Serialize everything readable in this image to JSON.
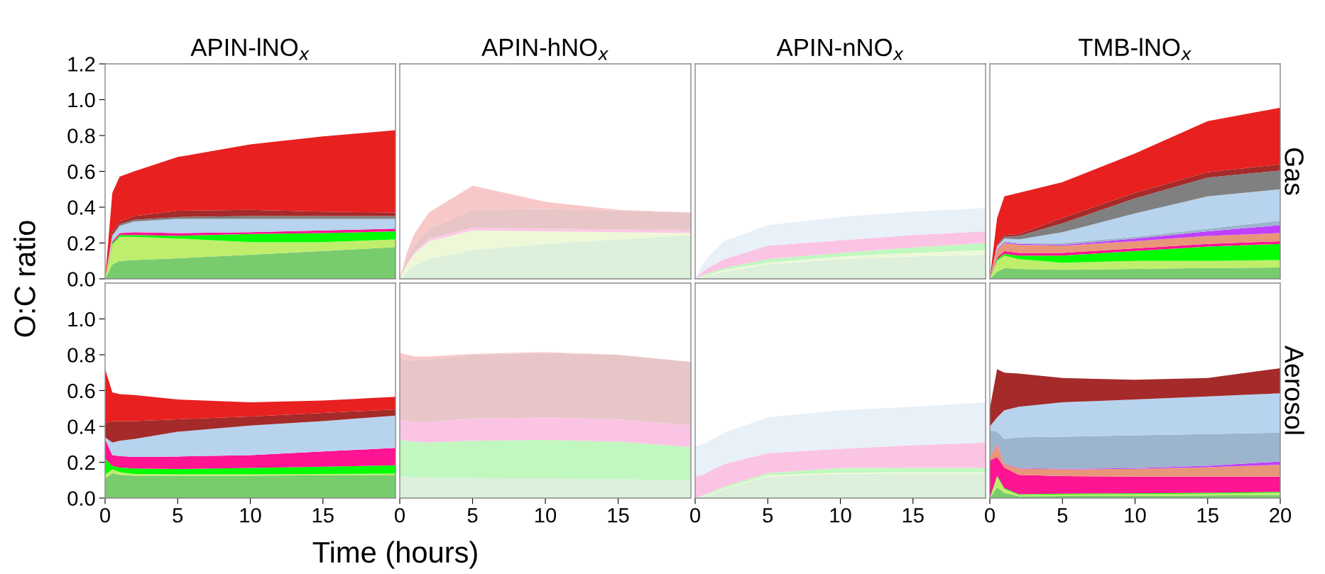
{
  "chart_data": [
    {
      "type": "area",
      "stacked": true,
      "title": "APIN-lNO$_{x}$",
      "ylabel": "O:C ratio",
      "tick_labels": "y",
      "x": [
        0,
        0.5,
        1,
        2,
        5,
        10,
        15,
        20
      ],
      "xlim": [
        0,
        20
      ],
      "ylim": [
        0,
        1.2
      ],
      "yticks": [
        {
          "value": 0,
          "label": "0.0"
        },
        {
          "value": 0.2,
          "label": "0.2"
        },
        {
          "value": 0.4,
          "label": "0.4"
        },
        {
          "value": 0.6,
          "label": "0.6"
        },
        {
          "value": 0.8,
          "label": "0.8"
        },
        {
          "value": 1.0,
          "label": "1.0"
        },
        {
          "value": 1.2,
          "label": "1.2"
        }
      ],
      "series": [
        {
          "color": "#78cc6e",
          "values": [
            0,
            0.08,
            0.1,
            0.105,
            0.115,
            0.135,
            0.155,
            0.177
          ]
        },
        {
          "color": "#bfee6c",
          "values": [
            0,
            0.11,
            0.135,
            0.13,
            0.11,
            0.07,
            0.05,
            0.043
          ]
        },
        {
          "color": "#00ff00",
          "values": [
            0,
            0.01,
            0.01,
            0.01,
            0.015,
            0.045,
            0.05,
            0.045
          ]
        },
        {
          "color": "#ff1493",
          "values": [
            0,
            0.01,
            0.01,
            0.015,
            0.015,
            0.01,
            0.015,
            0.015
          ]
        },
        {
          "color": "#b8d3ee",
          "values": [
            0,
            0.03,
            0.04,
            0.06,
            0.08,
            0.075,
            0.065,
            0.055
          ]
        },
        {
          "color": "#808080",
          "values": [
            0,
            0.005,
            0.01,
            0.01,
            0.01,
            0.015,
            0.015,
            0.015
          ]
        },
        {
          "color": "#a52a2a",
          "values": [
            0,
            0.015,
            0.015,
            0.02,
            0.035,
            0.035,
            0.025,
            0.02
          ]
        },
        {
          "color": "#e82020",
          "values": [
            0,
            0.22,
            0.25,
            0.25,
            0.3,
            0.365,
            0.42,
            0.46
          ]
        }
      ]
    },
    {
      "type": "area",
      "stacked": true,
      "title": "APIN-hNO$_{x}$",
      "tick_labels": false,
      "x": [
        0,
        0.5,
        1,
        2,
        5,
        10,
        15,
        20
      ],
      "xlim": [
        0,
        20
      ],
      "ylim": [
        0,
        1.2
      ],
      "series": [
        {
          "color": "#dcf0dc",
          "values": [
            0,
            0.04,
            0.07,
            0.11,
            0.16,
            0.195,
            0.22,
            0.245
          ]
        },
        {
          "color": "#eef8d8",
          "values": [
            0,
            0.04,
            0.07,
            0.1,
            0.11,
            0.07,
            0.04,
            0.01
          ]
        },
        {
          "color": "#fcc8e4",
          "values": [
            0,
            0.01,
            0.01,
            0.015,
            0.015,
            0.015,
            0.015,
            0.015
          ]
        },
        {
          "color": "#e8c6c8",
          "values": [
            0,
            0.03,
            0.04,
            0.055,
            0.1,
            0.11,
            0.105,
            0.1
          ]
        },
        {
          "color": "#f8c8c8",
          "values": [
            0,
            0.03,
            0.06,
            0.09,
            0.135,
            0.04,
            0.005,
            0
          ]
        }
      ]
    },
    {
      "type": "area",
      "stacked": true,
      "title": "APIN-nNO$_{x}$",
      "tick_labels": false,
      "x": [
        0,
        0.5,
        1,
        2,
        5,
        10,
        15,
        20
      ],
      "xlim": [
        0,
        20
      ],
      "ylim": [
        0,
        1.2
      ],
      "series": [
        {
          "color": "#dcf0dc",
          "values": [
            0,
            0.01,
            0.02,
            0.04,
            0.08,
            0.11,
            0.125,
            0.135
          ]
        },
        {
          "color": "#eef8d8",
          "values": [
            0,
            0.005,
            0.005,
            0.01,
            0.01,
            0.015,
            0.02,
            0.025
          ]
        },
        {
          "color": "#c0f8c0",
          "values": [
            0,
            0.005,
            0.01,
            0.01,
            0.02,
            0.02,
            0.03,
            0.04
          ]
        },
        {
          "color": "#fcc4e4",
          "values": [
            0,
            0.02,
            0.03,
            0.05,
            0.075,
            0.07,
            0.07,
            0.065
          ]
        },
        {
          "color": "#e8f0f8",
          "values": [
            0,
            0.04,
            0.065,
            0.1,
            0.115,
            0.13,
            0.13,
            0.13
          ]
        }
      ]
    },
    {
      "type": "area",
      "stacked": true,
      "title": "TMB-lNO$_{x}$",
      "tick_labels": false,
      "annotations": [
        "Gas"
      ],
      "x": [
        0,
        0.5,
        1,
        2,
        5,
        10,
        15,
        20
      ],
      "xlim": [
        0,
        20
      ],
      "ylim": [
        0,
        1.2
      ],
      "series": [
        {
          "color": "#78cc6e",
          "values": [
            0,
            0.04,
            0.06,
            0.055,
            0.05,
            0.055,
            0.06,
            0.063
          ]
        },
        {
          "color": "#bfee6c",
          "values": [
            0,
            0.06,
            0.07,
            0.055,
            0.04,
            0.045,
            0.04,
            0.042
          ]
        },
        {
          "color": "#00ff00",
          "values": [
            0,
            0.01,
            0.01,
            0.02,
            0.04,
            0.055,
            0.08,
            0.09
          ]
        },
        {
          "color": "#ff1493",
          "values": [
            0,
            0.01,
            0.015,
            0.015,
            0.015,
            0.015,
            0.015,
            0.015
          ]
        },
        {
          "color": "#e8967a",
          "values": [
            0,
            0.04,
            0.045,
            0.045,
            0.04,
            0.04,
            0.045,
            0.045
          ]
        },
        {
          "color": "#c040ff",
          "values": [
            0,
            0.005,
            0.005,
            0.005,
            0.005,
            0.015,
            0.025,
            0.045
          ]
        },
        {
          "color": "#9cb4cc",
          "values": [
            0,
            0.005,
            0.005,
            0.005,
            0.01,
            0.01,
            0.015,
            0.025
          ]
        },
        {
          "color": "#b8d3ee",
          "values": [
            0,
            0.01,
            0.015,
            0.02,
            0.06,
            0.13,
            0.18,
            0.175
          ]
        },
        {
          "color": "#808080",
          "values": [
            0,
            0.005,
            0.01,
            0.02,
            0.05,
            0.085,
            0.105,
            0.105
          ]
        },
        {
          "color": "#a52a2a",
          "values": [
            0,
            0.005,
            0.01,
            0.01,
            0.03,
            0.03,
            0.03,
            0.035
          ]
        },
        {
          "color": "#e82020",
          "values": [
            0,
            0.15,
            0.215,
            0.23,
            0.2,
            0.22,
            0.285,
            0.315
          ]
        }
      ]
    },
    {
      "type": "area",
      "stacked": true,
      "xlabel": "Time (hours)",
      "x": [
        0,
        0.5,
        1,
        2,
        5,
        10,
        15,
        20
      ],
      "xlim": [
        0,
        20
      ],
      "xticks": [
        0,
        5,
        10,
        15
      ],
      "ylim": [
        0,
        1.2
      ],
      "yticks": [
        {
          "value": 0,
          "label": "0.0"
        },
        {
          "value": 0.2,
          "label": "0.2"
        },
        {
          "value": 0.4,
          "label": "0.4"
        },
        {
          "value": 0.6,
          "label": "0.6"
        },
        {
          "value": 0.8,
          "label": "0.8"
        },
        {
          "value": 1.0,
          "label": "1.0"
        }
      ],
      "series": [
        {
          "color": "#78cc6e",
          "values": [
            0.11,
            0.14,
            0.13,
            0.125,
            0.125,
            0.125,
            0.128,
            0.13
          ]
        },
        {
          "color": "#bfee6c",
          "values": [
            0.02,
            0.02,
            0.015,
            0.01,
            0.008,
            0.008,
            0.007,
            0.007
          ]
        },
        {
          "color": "#00ff00",
          "values": [
            0.09,
            0.02,
            0.025,
            0.03,
            0.029,
            0.035,
            0.04,
            0.046
          ]
        },
        {
          "color": "#ff1493",
          "values": [
            0.11,
            0.06,
            0.065,
            0.065,
            0.07,
            0.072,
            0.085,
            0.097
          ]
        },
        {
          "color": "#b8d3ee",
          "values": [
            0.01,
            0.07,
            0.085,
            0.1,
            0.138,
            0.165,
            0.17,
            0.18
          ]
        },
        {
          "color": "#a52a2a",
          "values": [
            0.08,
            0.12,
            0.11,
            0.1,
            0.07,
            0.05,
            0.045,
            0.035
          ]
        },
        {
          "color": "#e82020",
          "values": [
            0.3,
            0.16,
            0.15,
            0.145,
            0.11,
            0.08,
            0.07,
            0.07
          ]
        }
      ]
    },
    {
      "type": "area",
      "stacked": true,
      "tick_labels": "x",
      "x": [
        0,
        0.5,
        1,
        2,
        5,
        10,
        15,
        20
      ],
      "xlim": [
        0,
        20
      ],
      "xticks": [
        0,
        5,
        10,
        15
      ],
      "ylim": [
        0,
        1.2
      ],
      "series": [
        {
          "color": "#dcf0dc",
          "values": [
            0.12,
            0.12,
            0.118,
            0.115,
            0.112,
            0.11,
            0.105,
            0.1
          ]
        },
        {
          "color": "#c0f8c0",
          "values": [
            0.21,
            0.2,
            0.197,
            0.195,
            0.208,
            0.215,
            0.21,
            0.185
          ]
        },
        {
          "color": "#fcc4e4",
          "values": [
            0.11,
            0.11,
            0.11,
            0.115,
            0.125,
            0.125,
            0.125,
            0.12
          ]
        },
        {
          "color": "#e8c6c8",
          "values": [
            0.34,
            0.34,
            0.345,
            0.35,
            0.355,
            0.36,
            0.36,
            0.355
          ]
        },
        {
          "color": "#f8c8c8",
          "values": [
            0.03,
            0.03,
            0.02,
            0.015,
            0.005,
            0.005,
            0,
            0
          ]
        }
      ]
    },
    {
      "type": "area",
      "stacked": true,
      "tick_labels": "x",
      "x": [
        0,
        0.5,
        1,
        2,
        5,
        10,
        15,
        20
      ],
      "xlim": [
        0,
        20
      ],
      "xticks": [
        0,
        5,
        10,
        15
      ],
      "ylim": [
        0,
        1.2
      ],
      "series": [
        {
          "color": "#dcf0dc",
          "values": [
            0,
            0.01,
            0.02,
            0.05,
            0.12,
            0.135,
            0.137,
            0.137
          ]
        },
        {
          "color": "#eef8d8",
          "values": [
            0,
            0.002,
            0.005,
            0.005,
            0.008,
            0.007,
            0.008,
            0.008
          ]
        },
        {
          "color": "#c0f8c0",
          "values": [
            0,
            0.003,
            0.005,
            0.01,
            0.012,
            0.026,
            0.023,
            0.023
          ]
        },
        {
          "color": "#fcc4e4",
          "values": [
            0.12,
            0.115,
            0.12,
            0.125,
            0.11,
            0.107,
            0.127,
            0.142
          ]
        },
        {
          "color": "#e8f0f8",
          "values": [
            0.17,
            0.17,
            0.17,
            0.175,
            0.2,
            0.215,
            0.215,
            0.225
          ]
        }
      ]
    },
    {
      "type": "area",
      "stacked": true,
      "tick_labels": "x",
      "annotations": [
        "Aerosol"
      ],
      "x": [
        0,
        0.5,
        1,
        2,
        5,
        10,
        15,
        20
      ],
      "xlim": [
        0,
        20
      ],
      "xticks": [
        0,
        5,
        10,
        15,
        20
      ],
      "ylim": [
        0,
        1.2
      ],
      "series": [
        {
          "color": "#78cc6e",
          "values": [
            0,
            0.06,
            0.03,
            0.01,
            0.012,
            0.012,
            0.015,
            0.018
          ]
        },
        {
          "color": "#bfee6c",
          "values": [
            0,
            0.06,
            0.02,
            0.008,
            0.008,
            0.01,
            0.01,
            0.012
          ]
        },
        {
          "color": "#00ff00",
          "values": [
            0,
            0.005,
            0.005,
            0.004,
            0.005,
            0.005,
            0.005,
            0.005
          ]
        },
        {
          "color": "#ff1493",
          "values": [
            0.21,
            0.105,
            0.115,
            0.108,
            0.098,
            0.093,
            0.09,
            0.085
          ]
        },
        {
          "color": "#e8967a",
          "values": [
            0.02,
            0.07,
            0.02,
            0.035,
            0.037,
            0.043,
            0.052,
            0.066
          ]
        },
        {
          "color": "#c040ff",
          "values": [
            0,
            0.003,
            0.003,
            0.003,
            0.003,
            0.004,
            0.008,
            0.018
          ]
        },
        {
          "color": "#9cb4cc",
          "values": [
            0.15,
            0.067,
            0.137,
            0.172,
            0.18,
            0.183,
            0.177,
            0.161
          ]
        },
        {
          "color": "#b8d3ee",
          "values": [
            0.02,
            0.08,
            0.16,
            0.17,
            0.192,
            0.2,
            0.21,
            0.22
          ]
        },
        {
          "color": "#a52a2a",
          "values": [
            0.1,
            0.27,
            0.21,
            0.185,
            0.135,
            0.11,
            0.103,
            0.14
          ]
        }
      ]
    }
  ]
}
